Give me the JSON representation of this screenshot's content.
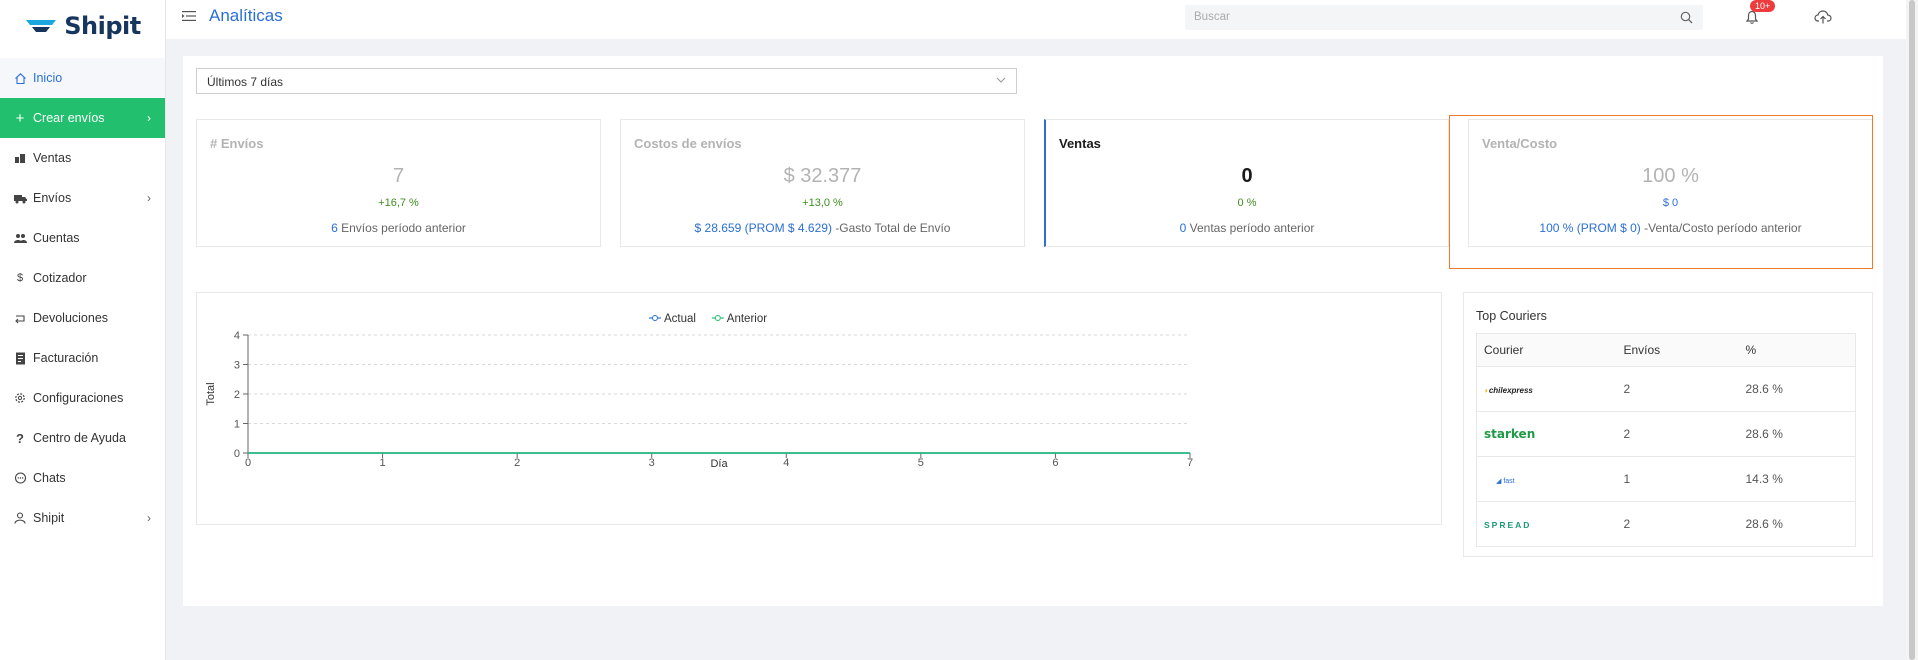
{
  "app": {
    "logo_text": "Shipit",
    "brand_color": "#16365e",
    "accent_color": "#2b6fd6",
    "primary_green": "#22c06e"
  },
  "sidebar": {
    "items": [
      {
        "label": "Inicio",
        "icon": "home-icon",
        "active": true
      },
      {
        "label": "Crear envíos",
        "icon": "plus-icon",
        "primary": true,
        "chevron": true
      },
      {
        "label": "Ventas",
        "icon": "store-icon"
      },
      {
        "label": "Envíos",
        "icon": "truck-icon",
        "chevron": true
      },
      {
        "label": "Cuentas",
        "icon": "users-icon"
      },
      {
        "label": "Cotizador",
        "icon": "dollar-icon"
      },
      {
        "label": "Devoluciones",
        "icon": "return-icon"
      },
      {
        "label": "Facturación",
        "icon": "invoice-icon"
      },
      {
        "label": "Configuraciones",
        "icon": "gear-icon"
      },
      {
        "label": "Centro de Ayuda",
        "icon": "question-icon"
      },
      {
        "label": "Chats",
        "icon": "chat-icon"
      },
      {
        "label": "Shipit",
        "icon": "user-icon",
        "chevron": true
      }
    ]
  },
  "header": {
    "title": "Analíticas",
    "search_placeholder": "Buscar",
    "notifications_badge": "10+"
  },
  "filters": {
    "period": "Últimos 7 días"
  },
  "kpis": {
    "envios": {
      "title": "# Envíos",
      "value": "7",
      "change": "+16,7 %",
      "footer_link": "6",
      "footer_text": " Envíos período anterior"
    },
    "costos": {
      "title": "Costos de envíos",
      "value": "$ 32.377",
      "change": "+13,0 %",
      "footer_link": "$ 28.659 (PROM $ 4.629)",
      "footer_text": " -Gasto Total de Envío"
    },
    "ventas": {
      "title": "Ventas",
      "value": "0",
      "change": "0 %",
      "footer_link": "0",
      "footer_text": " Ventas período anterior"
    },
    "venta_costo": {
      "title": "Venta/Costo",
      "value": "100 %",
      "change": "$ 0",
      "footer_link": "100 % (PROM $ 0)",
      "footer_text": " -Venta/Costo período anterior"
    }
  },
  "chart_data": {
    "type": "line",
    "x": [
      0,
      1,
      2,
      3,
      4,
      5,
      6,
      7
    ],
    "series": [
      {
        "name": "Actual",
        "values": [
          0,
          0,
          0,
          0,
          0,
          0,
          0,
          0
        ],
        "color": "#2b6fd6"
      },
      {
        "name": "Anterior",
        "values": [
          0,
          0,
          0,
          0,
          0,
          0,
          0,
          0
        ],
        "color": "#22c06e"
      }
    ],
    "xlabel": "Día",
    "ylabel": "Total",
    "ylim": [
      0,
      4
    ],
    "yticks": [
      0,
      1,
      2,
      3,
      4
    ],
    "grid": true,
    "legend": "top-center"
  },
  "couriers": {
    "title": "Top Couriers",
    "columns": [
      "Courier",
      "Envíos",
      "%"
    ],
    "rows": [
      {
        "courier": "chilexpress",
        "envios": "2",
        "pct": "28.6 %"
      },
      {
        "courier": "starken",
        "envios": "2",
        "pct": "28.6 %"
      },
      {
        "courier": "fast",
        "envios": "1",
        "pct": "14.3 %"
      },
      {
        "courier": "SPREAD",
        "envios": "2",
        "pct": "28.6 %"
      }
    ]
  }
}
